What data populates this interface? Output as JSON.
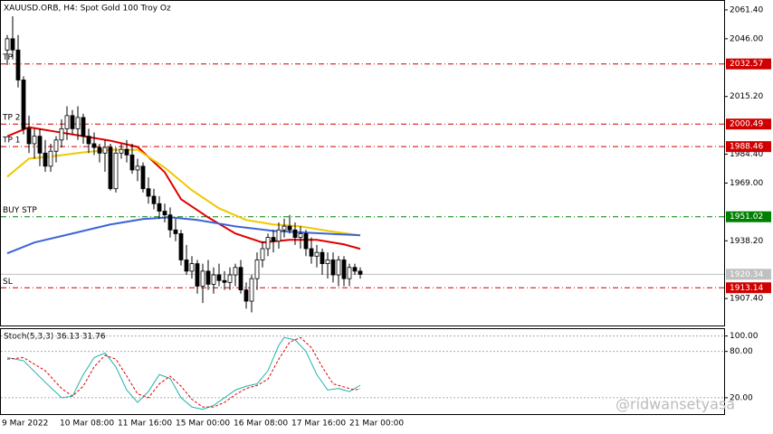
{
  "chart_data": [
    {
      "type": "candlestick",
      "title": "XAUUSD.ORB, H4:  Spot Gold 100 Troy Oz",
      "ylim": [
        1893.0,
        2066.2
      ],
      "yticks": [
        {
          "value": 2061.4,
          "label": "2061.40"
        },
        {
          "value": 2046,
          "label": "2046.00"
        },
        {
          "value": 2015.2,
          "label": "2015.20"
        },
        {
          "value": 1984.4,
          "label": "1984.40"
        },
        {
          "value": 1969,
          "label": "1969.00"
        },
        {
          "value": 1938.2,
          "label": "1938.20"
        },
        {
          "value": 1907.4,
          "label": "1907.40"
        }
      ],
      "candles": [
        [
          2040,
          2048,
          2032,
          2046
        ],
        [
          2046,
          2058,
          2035,
          2040
        ],
        [
          2040,
          2048,
          2020,
          2024
        ],
        [
          2024,
          2026,
          1995,
          1998
        ],
        [
          1998,
          2005,
          1985,
          1990
        ],
        [
          1990,
          1998,
          1982,
          1994
        ],
        [
          1994,
          1998,
          1978,
          1985
        ],
        [
          1985,
          1992,
          1975,
          1978
        ],
        [
          1978,
          1990,
          1975,
          1986
        ],
        [
          1986,
          1994,
          1980,
          1992
        ],
        [
          1992,
          2003,
          1988,
          1998
        ],
        [
          1998,
          2010,
          1992,
          2005
        ],
        [
          2005,
          2008,
          1995,
          1998
        ],
        [
          1998,
          2010,
          1992,
          2004
        ],
        [
          2004,
          2006,
          1990,
          1994
        ],
        [
          1994,
          1998,
          1985,
          1990
        ],
        [
          1990,
          1996,
          1984,
          1988
        ],
        [
          1988,
          1990,
          1980,
          1985
        ],
        [
          1985,
          1992,
          1975,
          1988
        ],
        [
          1988,
          1990,
          1965,
          1966
        ],
        [
          1966,
          1988,
          1964,
          1985
        ],
        [
          1985,
          1990,
          1982,
          1987
        ],
        [
          1987,
          1992,
          1980,
          1984
        ],
        [
          1984,
          1990,
          1974,
          1976
        ],
        [
          1976,
          1982,
          1970,
          1978
        ],
        [
          1978,
          1980,
          1964,
          1966
        ],
        [
          1966,
          1972,
          1958,
          1962
        ],
        [
          1962,
          1966,
          1955,
          1958
        ],
        [
          1958,
          1962,
          1950,
          1954
        ],
        [
          1954,
          1958,
          1948,
          1952
        ],
        [
          1952,
          1956,
          1940,
          1944
        ],
        [
          1944,
          1950,
          1938,
          1942
        ],
        [
          1942,
          1944,
          1925,
          1928
        ],
        [
          1928,
          1936,
          1920,
          1922
        ],
        [
          1922,
          1930,
          1918,
          1926
        ],
        [
          1926,
          1928,
          1910,
          1914
        ],
        [
          1914,
          1926,
          1905,
          1922
        ],
        [
          1922,
          1928,
          1912,
          1915
        ],
        [
          1915,
          1924,
          1910,
          1920
        ],
        [
          1920,
          1926,
          1914,
          1917
        ],
        [
          1917,
          1922,
          1912,
          1916
        ],
        [
          1916,
          1924,
          1912,
          1920
        ],
        [
          1920,
          1926,
          1914,
          1924
        ],
        [
          1924,
          1928,
          1910,
          1912
        ],
        [
          1912,
          1916,
          1902,
          1906
        ],
        [
          1906,
          1920,
          1900,
          1918
        ],
        [
          1918,
          1932,
          1912,
          1928
        ],
        [
          1928,
          1938,
          1924,
          1934
        ],
        [
          1934,
          1942,
          1930,
          1940
        ],
        [
          1940,
          1944,
          1932,
          1938
        ],
        [
          1938,
          1948,
          1934,
          1944
        ],
        [
          1944,
          1950,
          1940,
          1946
        ],
        [
          1946,
          1952,
          1942,
          1944
        ],
        [
          1944,
          1948,
          1936,
          1940
        ],
        [
          1940,
          1946,
          1934,
          1942
        ],
        [
          1942,
          1944,
          1930,
          1934
        ],
        [
          1934,
          1940,
          1926,
          1930
        ],
        [
          1930,
          1936,
          1924,
          1932
        ],
        [
          1932,
          1934,
          1920,
          1926
        ],
        [
          1926,
          1932,
          1918,
          1928
        ],
        [
          1928,
          1932,
          1916,
          1920
        ],
        [
          1920,
          1930,
          1914,
          1928
        ],
        [
          1928,
          1930,
          1914,
          1918
        ],
        [
          1918,
          1926,
          1914,
          1924
        ],
        [
          1924,
          1926,
          1920,
          1922
        ],
        [
          1922,
          1924,
          1918,
          1920.34
        ]
      ],
      "indicators": [
        {
          "color": "#e00000",
          "x": [
            0,
            4,
            9,
            14,
            19,
            24,
            29,
            32,
            37,
            42,
            47,
            52,
            57,
            62,
            65
          ],
          "values": [
            1994,
            1998.8,
            1996.4,
            1994,
            1991.6,
            1988.3,
            1974.8,
            1960.4,
            1950.7,
            1942.1,
            1937.3,
            1938.7,
            1938.7,
            1936.3,
            1933.9
          ]
        },
        {
          "color": "#f0c800",
          "x": [
            0,
            4,
            9,
            14,
            19,
            24,
            29,
            34,
            39,
            44,
            49,
            54,
            59,
            65
          ],
          "values": [
            1972.4,
            1982,
            1983.5,
            1985.4,
            1986.8,
            1986.8,
            1977.2,
            1965.2,
            1955.5,
            1949.3,
            1946.9,
            1945.9,
            1943.5,
            1941.1
          ]
        },
        {
          "color": "#3a64d8",
          "x": [
            0,
            5,
            12,
            19,
            25,
            30,
            35,
            42,
            49,
            55,
            65
          ],
          "values": [
            1931.5,
            1937.3,
            1942.1,
            1946.9,
            1949.8,
            1950.7,
            1949.3,
            1945.9,
            1943.5,
            1942.6,
            1941.1
          ]
        }
      ],
      "levels": [
        {
          "label": "TP 3",
          "value": 2032.57,
          "color": "#d00000"
        },
        {
          "label": "TP 2",
          "value": 2000.49,
          "color": "#d00000"
        },
        {
          "label": "TP 1",
          "value": 1988.46,
          "color": "#d00000"
        },
        {
          "label": "BUY STP",
          "value": 1951.02,
          "color": "#008000"
        },
        {
          "label": "SL",
          "value": 1913.14,
          "color": "#d00000"
        }
      ],
      "current_price": 1920.34,
      "x_labels": [
        "9 Mar 2022",
        "10 Mar 08:00",
        "11 Mar 16:00",
        "15 Mar 00:00",
        "16 Mar 08:00",
        "17 Mar 16:00",
        "21 Mar 00:00"
      ],
      "watermark": "@ridwansetyasa"
    },
    {
      "type": "line",
      "title": "Stoch(5,3,3) 36.13 31.76",
      "ylim": [
        -1.2,
        108.9
      ],
      "yticks": [
        {
          "value": 100,
          "label": "100.00"
        },
        {
          "value": 80,
          "label": "80.00"
        },
        {
          "value": 20,
          "label": "20.00"
        }
      ],
      "series": [
        {
          "color": "#20b2aa",
          "dash": false,
          "x": [
            0,
            3,
            7,
            10,
            12,
            14,
            16,
            18,
            20,
            22,
            24,
            26,
            28,
            30,
            32,
            34,
            36,
            38,
            40,
            42,
            44,
            46,
            48,
            50,
            51,
            53,
            55,
            57,
            59,
            61,
            63,
            65
          ],
          "values": [
            72,
            68,
            40,
            20,
            22,
            50,
            72,
            78,
            60,
            30,
            14,
            28,
            50,
            45,
            20,
            8,
            5,
            10,
            20,
            30,
            35,
            38,
            55,
            88,
            98,
            95,
            80,
            50,
            30,
            32,
            28,
            36.13
          ]
        },
        {
          "color": "#e00000",
          "dash": true,
          "x": [
            0,
            3,
            7,
            10,
            12,
            14,
            16,
            18,
            20,
            22,
            24,
            26,
            28,
            30,
            32,
            34,
            36,
            38,
            40,
            42,
            44,
            46,
            48,
            50,
            52,
            54,
            56,
            58,
            60,
            62,
            64,
            65
          ],
          "values": [
            70,
            72,
            55,
            32,
            22,
            35,
            60,
            75,
            70,
            48,
            25,
            20,
            38,
            48,
            35,
            18,
            8,
            8,
            14,
            24,
            32,
            36,
            44,
            70,
            92,
            98,
            85,
            60,
            38,
            34,
            30,
            31.76
          ]
        }
      ]
    }
  ]
}
